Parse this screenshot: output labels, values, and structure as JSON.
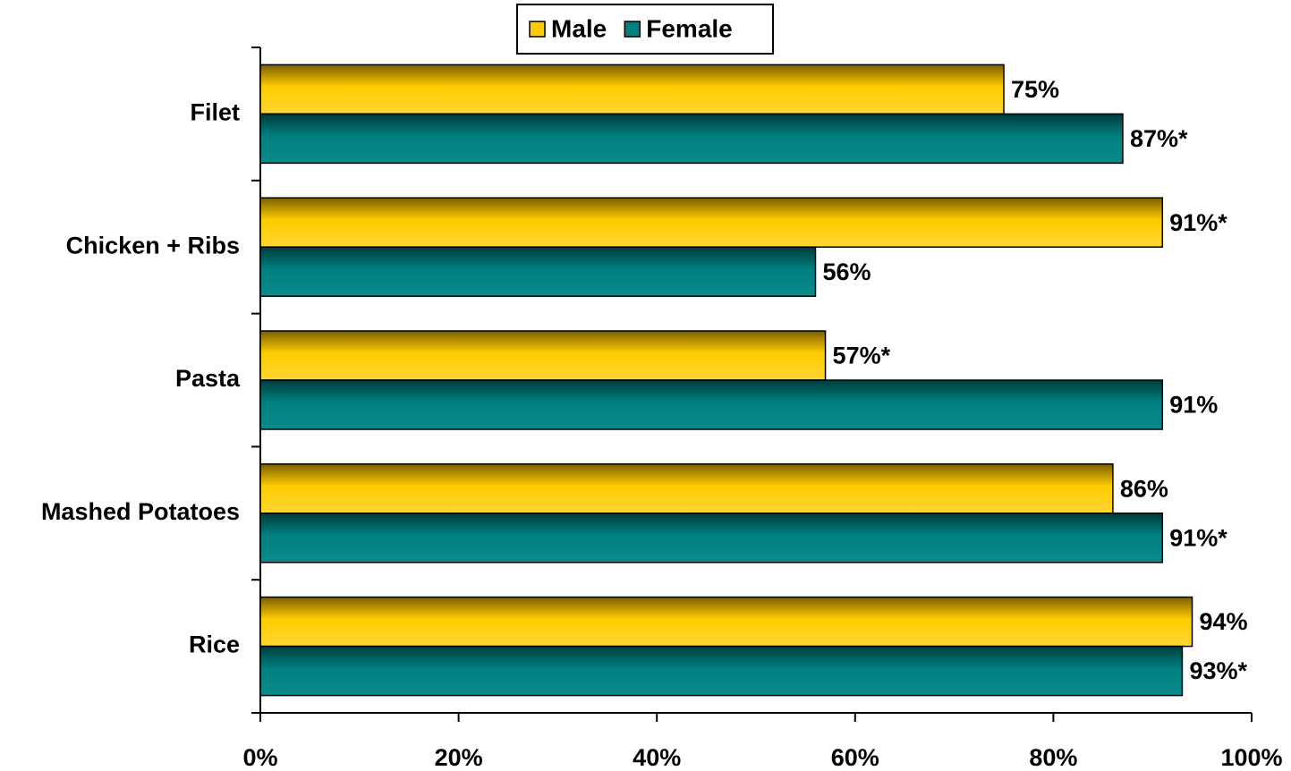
{
  "chart_data": {
    "type": "hbar",
    "categories": [
      "Filet",
      "Chicken + Ribs",
      "Pasta",
      "Mashed Potatoes",
      "Rice"
    ],
    "series": [
      {
        "name": "Male",
        "color": "#ffcc00",
        "values": [
          75,
          91,
          57,
          86,
          94
        ],
        "value_labels": [
          "75%",
          "91%*",
          "57%*",
          "86%",
          "94%"
        ]
      },
      {
        "name": "Female",
        "color": "#008080",
        "values": [
          87,
          56,
          91,
          91,
          93
        ],
        "value_labels": [
          "87%*",
          "56%",
          "91%",
          "91%*",
          "93%*"
        ]
      }
    ],
    "xlim": [
      0,
      100
    ],
    "xticks": [
      {
        "value": 0,
        "label": "0%"
      },
      {
        "value": 20,
        "label": "20%"
      },
      {
        "value": 40,
        "label": "40%"
      },
      {
        "value": 60,
        "label": "60%"
      },
      {
        "value": 80,
        "label": "80%"
      },
      {
        "value": 100,
        "label": "100%"
      }
    ],
    "legend": "top"
  }
}
